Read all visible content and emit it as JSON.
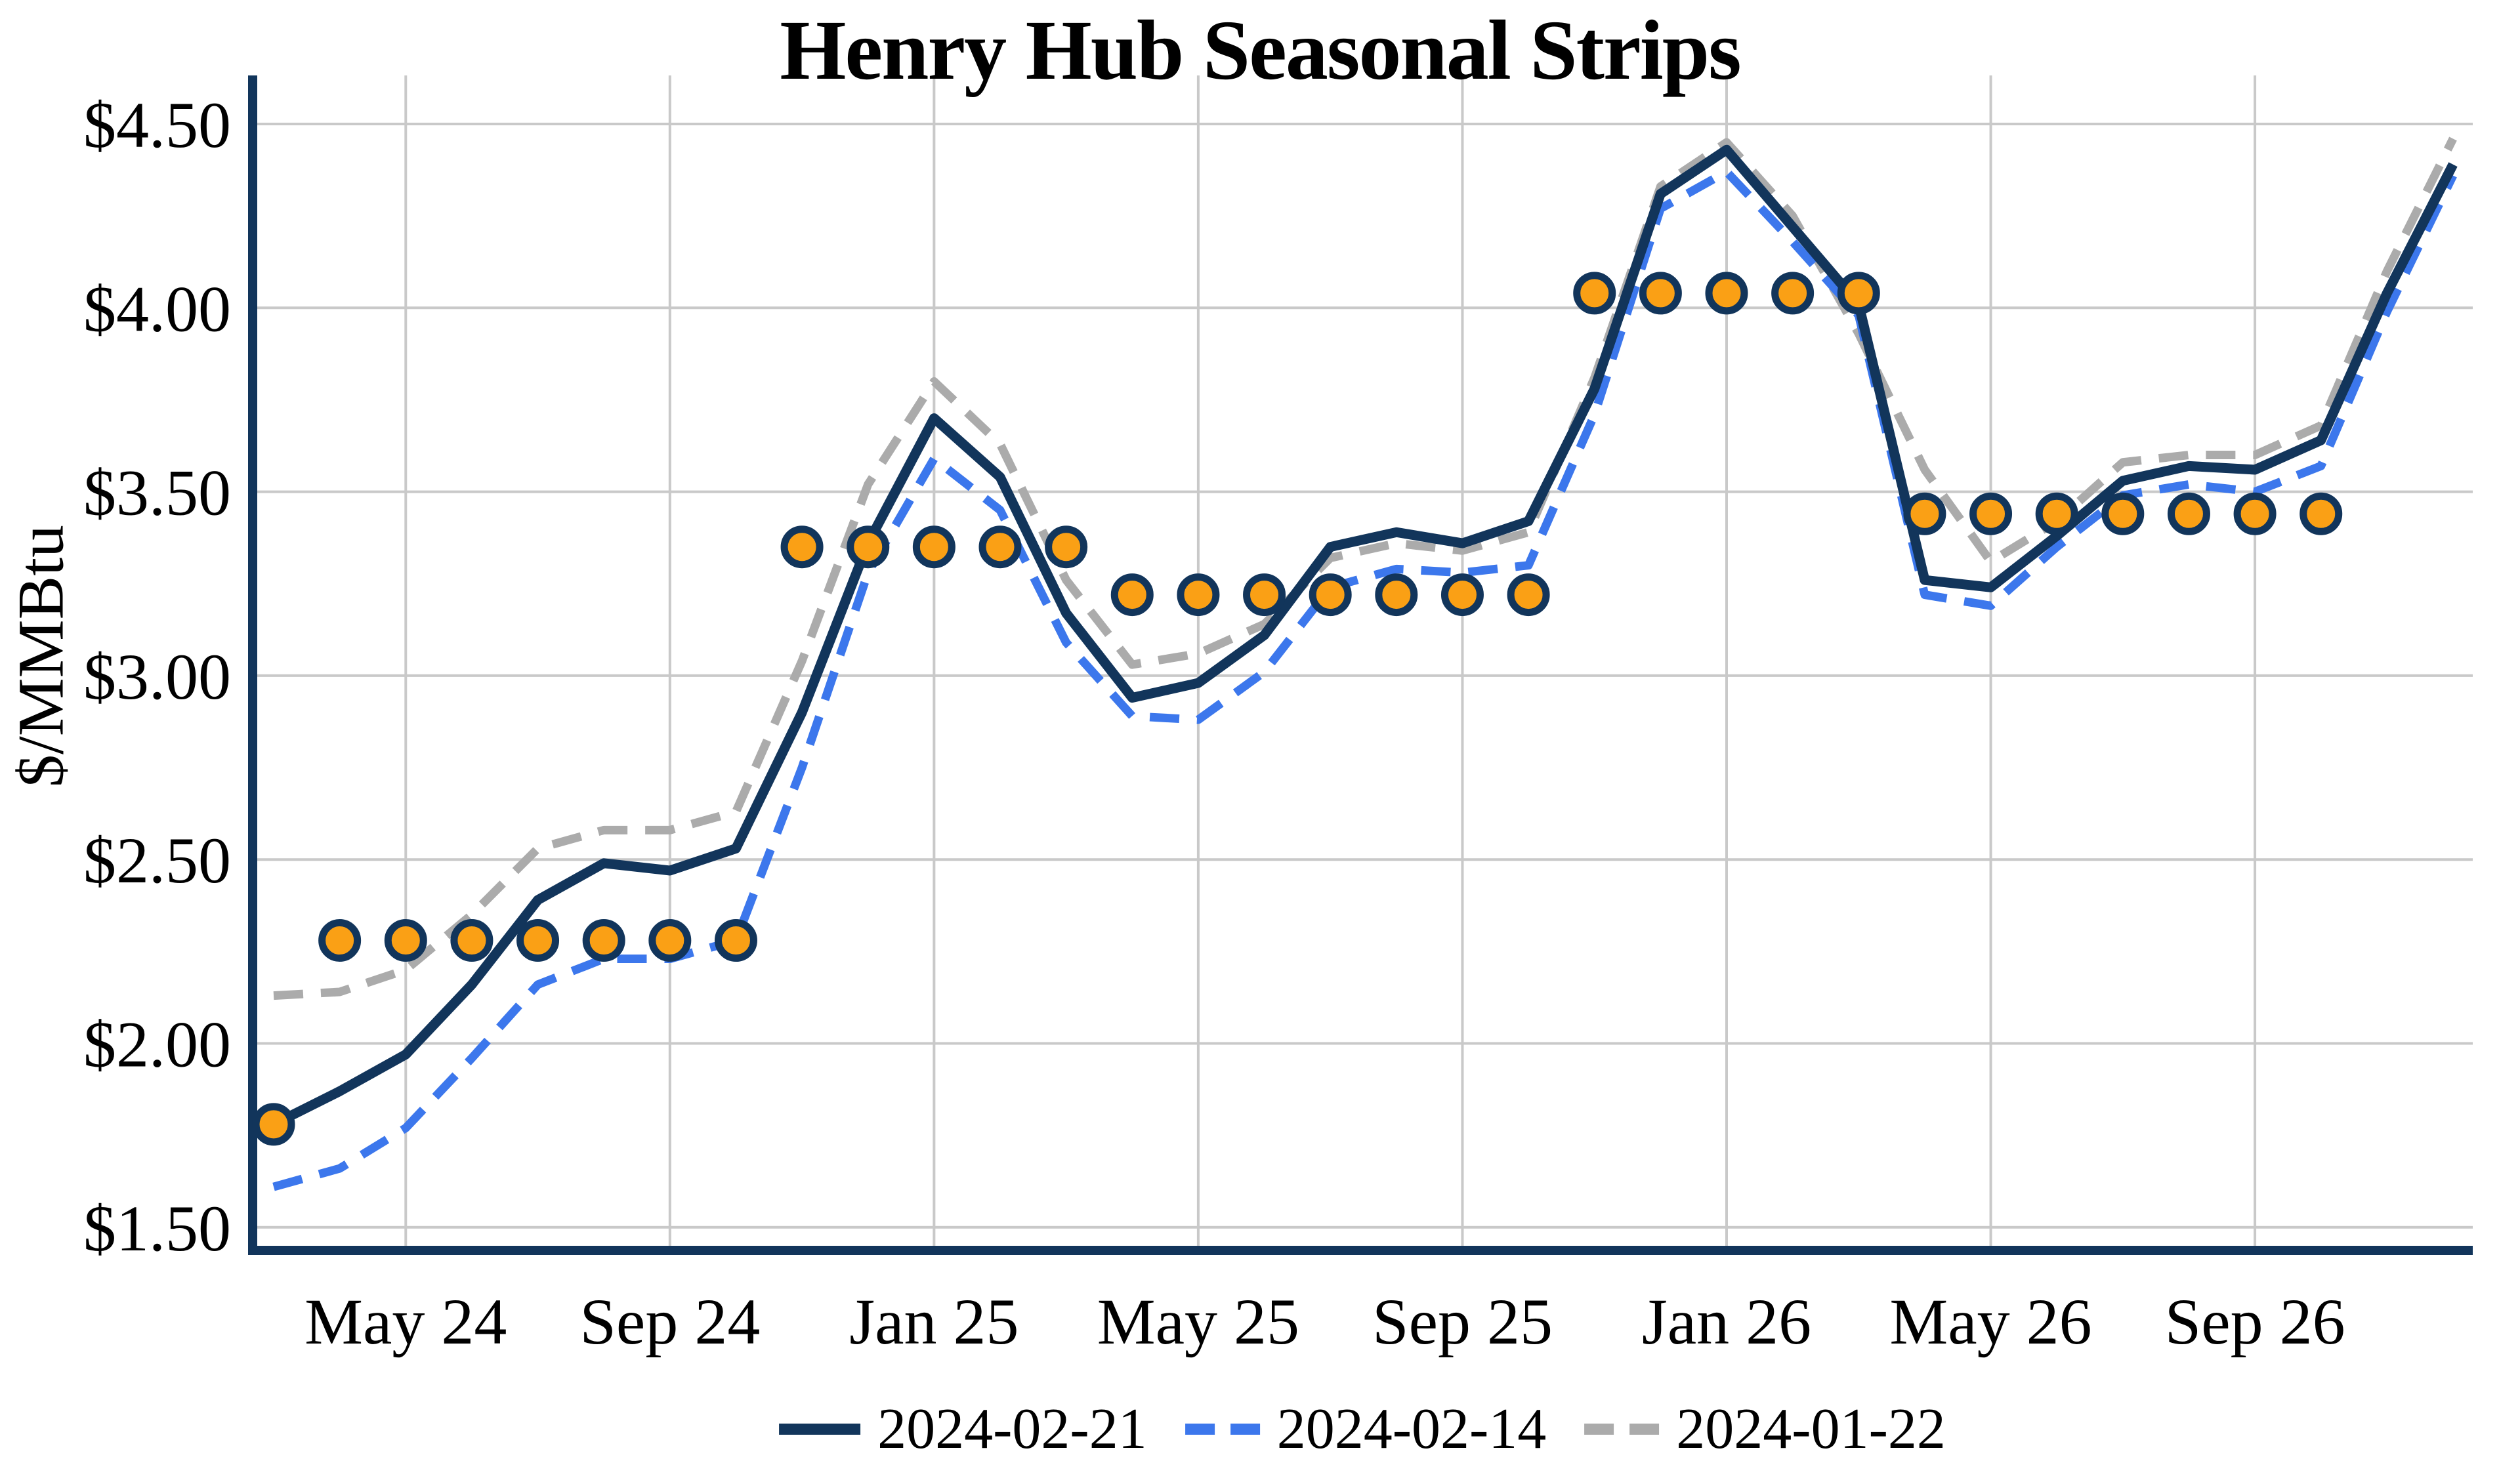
{
  "title": "Henry Hub Seasonal Strips",
  "y_axis": {
    "label": "$/MMBtu",
    "tick_labels": [
      "$4.50",
      "$4.00",
      "$3.50",
      "$3.00",
      "$2.50",
      "$2.00",
      "$1.50"
    ],
    "tick_values": [
      4.5,
      4.0,
      3.5,
      3.0,
      2.5,
      2.0,
      1.5
    ]
  },
  "x_axis": {
    "tick_labels": [
      "May 24",
      "Sep 24",
      "Jan 25",
      "May 25",
      "Sep 25",
      "Jan 26",
      "May 26",
      "Sep 26"
    ]
  },
  "legend": {
    "items": [
      {
        "label": "2024-02-21",
        "style": "solid",
        "color": "#12355B"
      },
      {
        "label": "2024-02-14",
        "style": "dashed",
        "color": "#3C77EC"
      },
      {
        "label": "2024-01-22",
        "style": "dashed",
        "color": "#ABABAB"
      }
    ]
  },
  "colors": {
    "navy": "#12355B",
    "blue": "#3C77EC",
    "gray": "#ABABAB",
    "orange": "#FAA015",
    "gridline": "#C9C9C9",
    "background": "#FFFFFF",
    "text": "#000000"
  },
  "chart_data": {
    "type": "line",
    "title": "Henry Hub Seasonal Strips",
    "xlabel": "",
    "ylabel": "$/MMBtu",
    "ylim": [
      1.5,
      4.5
    ],
    "grid": true,
    "legend_position": "bottom",
    "x": [
      "Mar 24",
      "Apr 24",
      "May 24",
      "Jun 24",
      "Jul 24",
      "Aug 24",
      "Sep 24",
      "Oct 24",
      "Nov 24",
      "Dec 24",
      "Jan 25",
      "Feb 25",
      "Mar 25",
      "Apr 25",
      "May 25",
      "Jun 25",
      "Jul 25",
      "Aug 25",
      "Sep 25",
      "Oct 25",
      "Nov 25",
      "Dec 25",
      "Jan 26",
      "Feb 26",
      "Mar 26",
      "Apr 26",
      "May 26",
      "Jun 26",
      "Jul 26",
      "Aug 26",
      "Sep 26",
      "Oct 26",
      "Nov 26",
      "Dec 26"
    ],
    "series": [
      {
        "name": "2024-02-21",
        "style": "solid",
        "color": "#12355B",
        "values": [
          1.78,
          1.87,
          1.97,
          2.16,
          2.39,
          2.49,
          2.47,
          2.53,
          2.9,
          3.36,
          3.7,
          3.54,
          3.17,
          2.94,
          2.98,
          3.11,
          3.35,
          3.39,
          3.36,
          3.42,
          3.78,
          4.31,
          4.43,
          4.22,
          4.01,
          3.26,
          3.24,
          3.38,
          3.53,
          3.57,
          3.56,
          3.64,
          4.04,
          4.39
        ]
      },
      {
        "name": "2024-02-14",
        "style": "dashed",
        "color": "#3C77EC",
        "values": [
          1.61,
          1.66,
          1.77,
          1.96,
          2.16,
          2.23,
          2.23,
          2.28,
          2.75,
          3.28,
          3.59,
          3.45,
          3.09,
          2.89,
          2.88,
          3.01,
          3.24,
          3.29,
          3.28,
          3.3,
          3.71,
          4.27,
          4.37,
          4.18,
          3.98,
          3.22,
          3.19,
          3.35,
          3.49,
          3.52,
          3.5,
          3.57,
          3.99,
          4.36
        ]
      },
      {
        "name": "2024-01-22",
        "style": "dashed",
        "color": "#ABABAB",
        "values": [
          2.13,
          2.14,
          2.2,
          2.35,
          2.53,
          2.58,
          2.58,
          2.63,
          3.04,
          3.52,
          3.8,
          3.63,
          3.26,
          3.03,
          3.06,
          3.14,
          3.32,
          3.36,
          3.34,
          3.39,
          3.81,
          4.33,
          4.45,
          4.25,
          3.93,
          3.56,
          3.31,
          3.42,
          3.58,
          3.6,
          3.6,
          3.68,
          4.1,
          4.46
        ]
      }
    ],
    "scatter": {
      "name": "seasonal-strip-averages",
      "marker": "circle",
      "fill": "#FAA015",
      "edge": "#12355B",
      "points": [
        {
          "month": "Mar 24",
          "value": 1.78
        },
        {
          "month": "Apr 24",
          "value": 2.28
        },
        {
          "month": "May 24",
          "value": 2.28
        },
        {
          "month": "Jun 24",
          "value": 2.28
        },
        {
          "month": "Jul 24",
          "value": 2.28
        },
        {
          "month": "Aug 24",
          "value": 2.28
        },
        {
          "month": "Sep 24",
          "value": 2.28
        },
        {
          "month": "Oct 24",
          "value": 2.28
        },
        {
          "month": "Nov 24",
          "value": 3.35
        },
        {
          "month": "Dec 24",
          "value": 3.35
        },
        {
          "month": "Jan 25",
          "value": 3.35
        },
        {
          "month": "Feb 25",
          "value": 3.35
        },
        {
          "month": "Mar 25",
          "value": 3.35
        },
        {
          "month": "Apr 25",
          "value": 3.22
        },
        {
          "month": "May 25",
          "value": 3.22
        },
        {
          "month": "Jun 25",
          "value": 3.22
        },
        {
          "month": "Jul 25",
          "value": 3.22
        },
        {
          "month": "Aug 25",
          "value": 3.22
        },
        {
          "month": "Sep 25",
          "value": 3.22
        },
        {
          "month": "Oct 25",
          "value": 3.22
        },
        {
          "month": "Nov 25",
          "value": 4.04
        },
        {
          "month": "Dec 25",
          "value": 4.04
        },
        {
          "month": "Jan 26",
          "value": 4.04
        },
        {
          "month": "Feb 26",
          "value": 4.04
        },
        {
          "month": "Mar 26",
          "value": 4.04
        },
        {
          "month": "Apr 26",
          "value": 3.44
        },
        {
          "month": "May 26",
          "value": 3.44
        },
        {
          "month": "Jun 26",
          "value": 3.44
        },
        {
          "month": "Jul 26",
          "value": 3.44
        },
        {
          "month": "Aug 26",
          "value": 3.44
        },
        {
          "month": "Sep 26",
          "value": 3.44
        },
        {
          "month": "Oct 26",
          "value": 3.44
        }
      ]
    }
  }
}
